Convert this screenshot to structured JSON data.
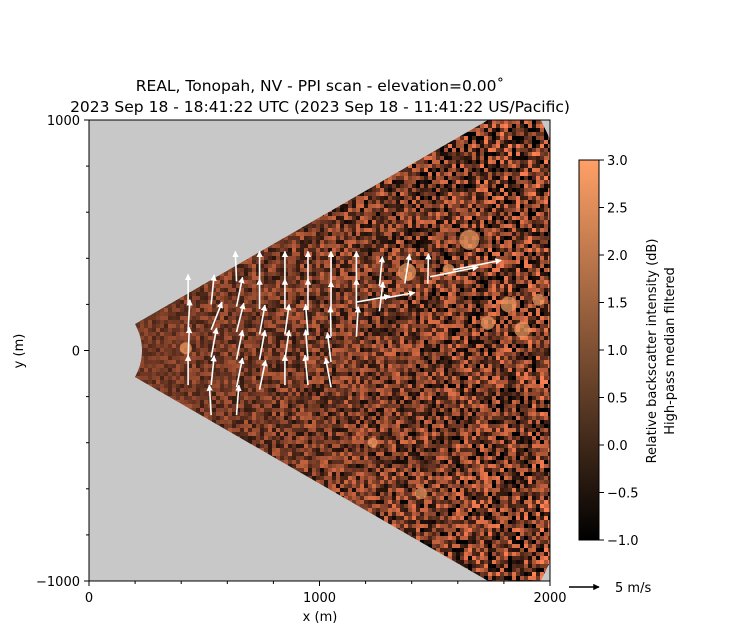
{
  "chart_data": {
    "type": "heatmap",
    "title_line1": "REAL, Tonopah, NV - PPI scan - elevation=0.00$^\\circ$",
    "title_line1_display": "REAL, Tonopah, NV - PPI scan - elevation=0.00˚",
    "title_line2": "2023 Sep 18 - 18:41:22 UTC (2023 Sep 18 - 11:41:22 US/Pacific)",
    "xlabel": "x (m)",
    "ylabel": "y (m)",
    "xlim": [
      0,
      2000
    ],
    "ylim": [
      -1000,
      1000
    ],
    "x_ticks": [
      0,
      1000,
      2000
    ],
    "y_ticks": [
      1000,
      0,
      -1000
    ],
    "x_tick_labels": [
      "0",
      "1000",
      "2000"
    ],
    "y_tick_labels": [
      "1000",
      "0",
      "−1000"
    ],
    "colorbar": {
      "label_line1": "Relative backscatter intensity (dB)",
      "label_line2": "High-pass median filtered",
      "range": [
        -1.0,
        3.0
      ],
      "ticks": [
        3.0,
        2.5,
        2.0,
        1.5,
        1.0,
        0.5,
        0.0,
        -0.5,
        -1.0
      ],
      "tick_labels": [
        "3.0",
        "2.5",
        "2.0",
        "1.5",
        "1.0",
        "0.5",
        "0.0",
        "−0.5",
        "−1.0"
      ],
      "colormap": "copper"
    },
    "scan_sector": {
      "min_range_m": 230,
      "max_range_m": 2200,
      "angle_deg_min": -30,
      "angle_deg_max": 30
    },
    "wind_key": {
      "label": "5 m/s",
      "speed_ms": 5
    },
    "wind_vectors": [
      {
        "x": 430,
        "y": 200,
        "u": 0.0,
        "v": 5.0
      },
      {
        "x": 430,
        "y": 90,
        "u": 0.3,
        "v": 5.0
      },
      {
        "x": 430,
        "y": -30,
        "u": 0.2,
        "v": 5.0
      },
      {
        "x": 430,
        "y": -150,
        "u": 0.0,
        "v": 5.0
      },
      {
        "x": 530,
        "y": 200,
        "u": 0.5,
        "v": 4.9
      },
      {
        "x": 530,
        "y": 90,
        "u": 1.8,
        "v": 4.6
      },
      {
        "x": 530,
        "y": -30,
        "u": 0.9,
        "v": 4.9
      },
      {
        "x": 530,
        "y": -150,
        "u": 0.5,
        "v": 4.9
      },
      {
        "x": 530,
        "y": -280,
        "u": -0.3,
        "v": 5.0
      },
      {
        "x": 640,
        "y": 300,
        "u": -0.2,
        "v": 5.0
      },
      {
        "x": 640,
        "y": 190,
        "u": 1.0,
        "v": 4.9
      },
      {
        "x": 640,
        "y": 80,
        "u": 1.2,
        "v": 4.8
      },
      {
        "x": 640,
        "y": -40,
        "u": 1.0,
        "v": 4.9
      },
      {
        "x": 640,
        "y": -160,
        "u": 1.0,
        "v": 4.9
      },
      {
        "x": 640,
        "y": -280,
        "u": 0.4,
        "v": 5.0
      },
      {
        "x": 740,
        "y": 300,
        "u": 0.0,
        "v": 5.0
      },
      {
        "x": 740,
        "y": 180,
        "u": 0.0,
        "v": 5.0
      },
      {
        "x": 740,
        "y": 70,
        "u": 0.9,
        "v": 4.9
      },
      {
        "x": 740,
        "y": -40,
        "u": 0.9,
        "v": 4.9
      },
      {
        "x": 740,
        "y": -170,
        "u": 1.0,
        "v": 4.9
      },
      {
        "x": 850,
        "y": 300,
        "u": 0.0,
        "v": 5.0
      },
      {
        "x": 850,
        "y": 180,
        "u": 0.0,
        "v": 5.0
      },
      {
        "x": 850,
        "y": 70,
        "u": 0.7,
        "v": 5.0
      },
      {
        "x": 850,
        "y": -40,
        "u": 0.7,
        "v": 4.9
      },
      {
        "x": 850,
        "y": -150,
        "u": 0.0,
        "v": 5.0
      },
      {
        "x": 950,
        "y": 300,
        "u": 0.0,
        "v": 5.0
      },
      {
        "x": 950,
        "y": 180,
        "u": 0.0,
        "v": 5.0
      },
      {
        "x": 950,
        "y": 70,
        "u": -0.4,
        "v": 5.0
      },
      {
        "x": 950,
        "y": -40,
        "u": -0.4,
        "v": 5.0
      },
      {
        "x": 950,
        "y": -150,
        "u": -0.5,
        "v": 5.0
      },
      {
        "x": 1050,
        "y": 300,
        "u": 0.0,
        "v": 5.0
      },
      {
        "x": 1050,
        "y": 170,
        "u": 0.0,
        "v": 5.0
      },
      {
        "x": 1050,
        "y": 60,
        "u": -0.1,
        "v": 5.0
      },
      {
        "x": 1050,
        "y": -50,
        "u": -0.6,
        "v": 4.9
      },
      {
        "x": 1050,
        "y": -160,
        "u": -0.9,
        "v": 4.9
      },
      {
        "x": 1160,
        "y": 300,
        "u": 0.0,
        "v": 5.0
      },
      {
        "x": 1160,
        "y": 180,
        "u": 0.0,
        "v": 5.0
      },
      {
        "x": 1160,
        "y": 60,
        "u": 0.3,
        "v": 5.0
      },
      {
        "x": 1160,
        "y": 210,
        "u": 5.6,
        "v": 1.0
      },
      {
        "x": 1260,
        "y": 280,
        "u": 0.5,
        "v": 4.9
      },
      {
        "x": 1260,
        "y": 170,
        "u": 0.6,
        "v": 4.9
      },
      {
        "x": 1270,
        "y": 225,
        "u": 5.5,
        "v": 1.0
      },
      {
        "x": 1370,
        "y": 290,
        "u": 0.8,
        "v": 4.9
      },
      {
        "x": 1470,
        "y": 290,
        "u": 0.1,
        "v": 5.0
      },
      {
        "x": 1480,
        "y": 320,
        "u": 8.0,
        "v": 1.6
      },
      {
        "x": 1580,
        "y": 350,
        "u": 8.0,
        "v": 1.6
      }
    ]
  }
}
